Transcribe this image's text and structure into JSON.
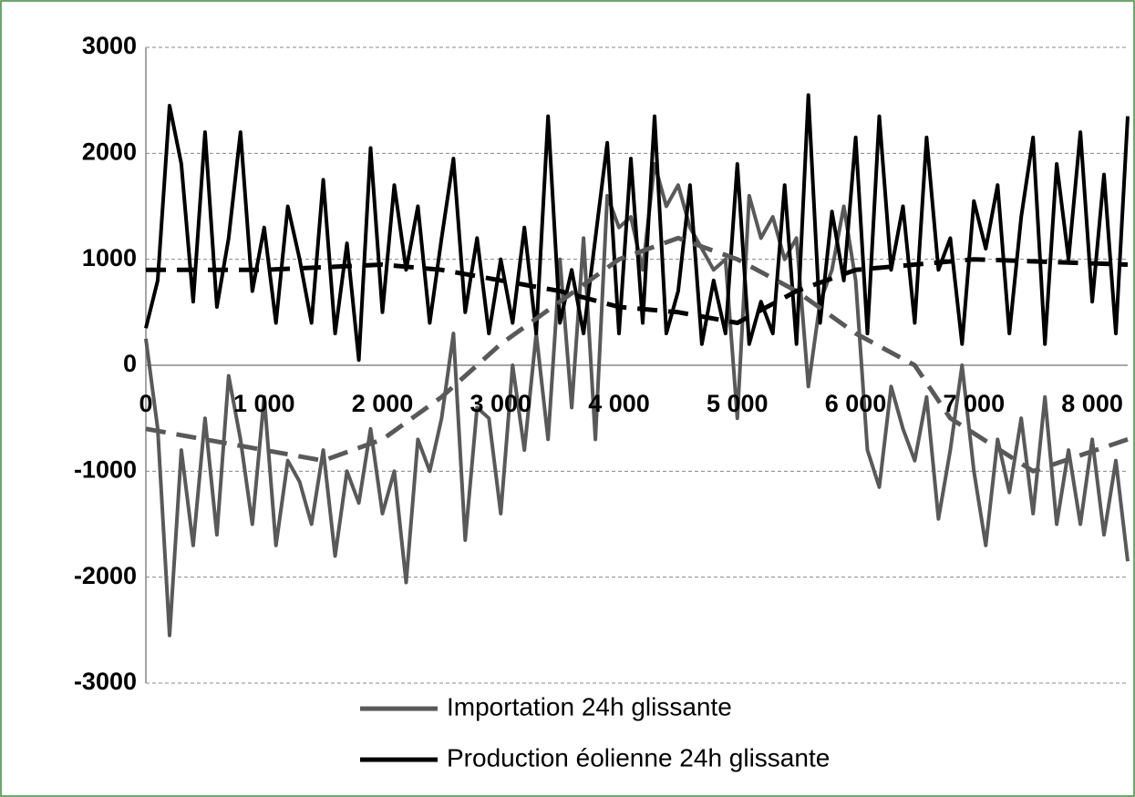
{
  "chart_data": {
    "type": "line",
    "x": [
      0,
      100,
      200,
      300,
      400,
      500,
      600,
      700,
      800,
      900,
      1000,
      1100,
      1200,
      1300,
      1400,
      1500,
      1600,
      1700,
      1800,
      1900,
      2000,
      2100,
      2200,
      2300,
      2400,
      2500,
      2600,
      2700,
      2800,
      2900,
      3000,
      3100,
      3200,
      3300,
      3400,
      3500,
      3600,
      3700,
      3800,
      3900,
      4000,
      4100,
      4200,
      4300,
      4400,
      4500,
      4600,
      4700,
      4800,
      4900,
      5000,
      5100,
      5200,
      5300,
      5400,
      5500,
      5600,
      5700,
      5800,
      5900,
      6000,
      6100,
      6200,
      6300,
      6400,
      6500,
      6600,
      6700,
      6800,
      6900,
      7000,
      7100,
      7200,
      7300,
      7400,
      7500,
      7600,
      7700,
      7800,
      7900,
      8000,
      8100,
      8200,
      8300
    ],
    "series": [
      {
        "name": "Importation 24h glissante",
        "color": "#595959",
        "values": [
          250,
          -600,
          -2550,
          -800,
          -1700,
          -500,
          -1600,
          -100,
          -700,
          -1500,
          -300,
          -1700,
          -900,
          -1100,
          -1500,
          -800,
          -1800,
          -1000,
          -1300,
          -600,
          -1400,
          -1000,
          -2050,
          -700,
          -1000,
          -500,
          300,
          -1650,
          -400,
          -500,
          -1400,
          0,
          -800,
          300,
          -700,
          1000,
          -400,
          1200,
          -700,
          1600,
          1300,
          1400,
          900,
          1900,
          1500,
          1700,
          1300,
          1100,
          900,
          1000,
          -500,
          1600,
          1200,
          1400,
          1000,
          1200,
          -200,
          600,
          900,
          1500,
          800,
          -800,
          -1150,
          -200,
          -600,
          -900,
          -300,
          -1450,
          -800,
          0,
          -1000,
          -1700,
          -700,
          -1200,
          -500,
          -1400,
          -300,
          -1500,
          -800,
          -1500,
          -700,
          -1600,
          -900,
          -1850
        ]
      },
      {
        "name": "Production éolienne 24h glissante",
        "color": "#000000",
        "values": [
          350,
          800,
          2450,
          1900,
          600,
          2200,
          550,
          1200,
          2200,
          700,
          1300,
          400,
          1500,
          1000,
          400,
          1750,
          300,
          1150,
          50,
          2050,
          500,
          1700,
          900,
          1500,
          400,
          1200,
          1950,
          500,
          1200,
          300,
          1000,
          400,
          1300,
          300,
          2350,
          400,
          900,
          300,
          1200,
          2100,
          300,
          1950,
          400,
          2350,
          300,
          700,
          1700,
          200,
          800,
          300,
          1900,
          200,
          600,
          300,
          1700,
          200,
          2550,
          400,
          1450,
          800,
          2150,
          300,
          2350,
          900,
          1500,
          400,
          2150,
          900,
          1200,
          200,
          1550,
          1100,
          1700,
          300,
          1400,
          2150,
          200,
          1900,
          1000,
          2200,
          600,
          1800,
          300,
          2350
        ]
      },
      {
        "color": "#595959",
        "dashed": true,
        "x": [
          0,
          1500,
          2000,
          2500,
          3000,
          3500,
          4000,
          4500,
          5000,
          5500,
          6000,
          6500,
          6800,
          7500,
          8300
        ],
        "values": [
          -600,
          -900,
          -700,
          -300,
          200,
          600,
          1000,
          1200,
          1000,
          700,
          300,
          0,
          -500,
          -1000,
          -700
        ]
      },
      {
        "color": "#000000",
        "dashed": true,
        "x": [
          0,
          1000,
          2000,
          2500,
          3000,
          3500,
          4000,
          4500,
          5000,
          5500,
          6000,
          7000,
          8300
        ],
        "values": [
          900,
          900,
          950,
          900,
          800,
          700,
          550,
          500,
          400,
          700,
          900,
          1000,
          950
        ]
      }
    ],
    "xlim": [
      0,
      8300
    ],
    "ylim": [
      -3000,
      3000
    ],
    "xticks": [
      0,
      {
        "value": 1000,
        "label": "1 000"
      },
      {
        "value": 2000,
        "label": "2 000"
      },
      {
        "value": 3000,
        "label": "3 000"
      },
      {
        "value": 4000,
        "label": "4 000"
      },
      {
        "value": 5000,
        "label": "5 000"
      },
      {
        "value": 6000,
        "label": "6 000"
      },
      {
        "value": 7000,
        "label": "7 000"
      },
      {
        "value": 8000,
        "label": "8 000"
      }
    ],
    "yticks": [
      3000,
      2000,
      1000,
      0,
      -1000,
      -2000,
      -3000
    ],
    "grid": true,
    "legend": "bottom"
  }
}
